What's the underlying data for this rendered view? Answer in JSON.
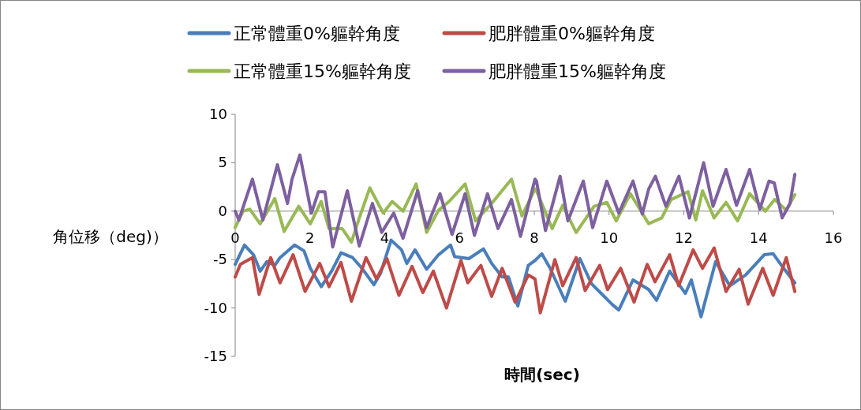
{
  "chart_data": {
    "type": "line",
    "xlabel": "時間(sec)",
    "ylabel": "角位移（deg)）",
    "xlim": [
      0,
      16
    ],
    "xticks": [
      0,
      2,
      4,
      6,
      8,
      10,
      12,
      14,
      16
    ],
    "ylim": [
      -15,
      10
    ],
    "yticks": [
      -15,
      -10,
      -5,
      0,
      5,
      10
    ],
    "grid": false,
    "legend": "top",
    "marker": "none",
    "line_style": "solid",
    "series": [
      {
        "name": "正常體重0%軀幹角度",
        "color": "#4a7ebb",
        "x": [
          0,
          0.25,
          0.49,
          0.67,
          0.85,
          1.06,
          1.2,
          1.59,
          1.84,
          2.01,
          2.3,
          2.58,
          2.83,
          3.14,
          3.39,
          3.71,
          3.89,
          4.17,
          4.45,
          4.59,
          4.81,
          5.12,
          5.44,
          5.76,
          5.87,
          6.25,
          6.64,
          6.86,
          7.14,
          7.31,
          7.56,
          7.84,
          8.02,
          8.2,
          8.41,
          8.83,
          9.22,
          9.53,
          10.1,
          10.26,
          10.64,
          11.06,
          11.27,
          11.62,
          12.04,
          12.2,
          12.46,
          12.85,
          13.23,
          13.65,
          14.15,
          14.39,
          14.67,
          14.97
        ],
        "values": [
          -5.5,
          -3.5,
          -4.5,
          -6.2,
          -5.2,
          -5.6,
          -4.8,
          -3.5,
          -4.1,
          -5.9,
          -7.8,
          -6.2,
          -4.3,
          -4.8,
          -5.9,
          -7.6,
          -6.4,
          -3,
          -4,
          -5.4,
          -4,
          -6,
          -4.5,
          -3.5,
          -4.7,
          -4.9,
          -3.9,
          -5.4,
          -6.8,
          -6.8,
          -9.8,
          -5.6,
          -5.1,
          -4.4,
          -5.8,
          -9.3,
          -4.9,
          -7.5,
          -9.7,
          -10.2,
          -7.1,
          -8.1,
          -9.2,
          -6.2,
          -8.5,
          -7.1,
          -10.9,
          -5.2,
          -7.7,
          -6.6,
          -4.5,
          -4.4,
          -5.9,
          -7.4
        ]
      },
      {
        "name": "肥胖體重0%軀幹角度",
        "color": "#be4b48",
        "x": [
          0,
          0.14,
          0.46,
          0.64,
          0.95,
          1.2,
          1.55,
          1.87,
          2.26,
          2.51,
          2.83,
          3.11,
          3.5,
          3.78,
          4.06,
          4.38,
          4.73,
          5.02,
          5.3,
          5.65,
          6.04,
          6.22,
          6.57,
          6.86,
          7.14,
          7.49,
          7.84,
          8.02,
          8.16,
          8.55,
          8.76,
          9.12,
          9.36,
          9.75,
          9.96,
          10.31,
          10.67,
          11.02,
          11.23,
          11.62,
          11.86,
          12.25,
          12.5,
          12.81,
          13.13,
          13.48,
          13.72,
          14.11,
          14.39,
          14.74,
          14.97
        ],
        "values": [
          -6.8,
          -5.5,
          -4.8,
          -8.6,
          -4.8,
          -7.4,
          -4.5,
          -8.3,
          -5.4,
          -7.8,
          -5.3,
          -9.3,
          -4.8,
          -7,
          -4.9,
          -8.7,
          -5.7,
          -8.4,
          -6.2,
          -10,
          -5.1,
          -7.4,
          -5.6,
          -8.8,
          -5.9,
          -9.4,
          -6.6,
          -7,
          -10.5,
          -5,
          -7.7,
          -4.8,
          -8.2,
          -5.6,
          -8.1,
          -5.9,
          -9.4,
          -5.5,
          -7.3,
          -4.5,
          -7.7,
          -4,
          -5.9,
          -3.8,
          -8.3,
          -6,
          -9.6,
          -5.9,
          -8.7,
          -4.8,
          -8.3
        ]
      },
      {
        "name": "正常體重15%軀幹角度",
        "color": "#98b954",
        "x": [
          0,
          0.21,
          0.39,
          0.67,
          1.06,
          1.31,
          1.7,
          2.01,
          2.3,
          2.51,
          2.86,
          3.11,
          3.32,
          3.6,
          3.96,
          4.2,
          4.49,
          4.84,
          5.12,
          5.44,
          5.72,
          6.15,
          6.43,
          6.86,
          7.39,
          7.67,
          8.02,
          8.06,
          8.48,
          8.76,
          9.12,
          9.6,
          9.94,
          10.19,
          10.57,
          11.06,
          11.41,
          11.66,
          12.11,
          12.32,
          12.5,
          12.81,
          13.13,
          13.44,
          13.76,
          14.18,
          14.43,
          14.74,
          14.97
        ],
        "values": [
          -1.7,
          0,
          0.2,
          -1.3,
          1.3,
          -2.1,
          0.5,
          -1.3,
          1,
          -1.8,
          -1.8,
          -3.2,
          -0.7,
          2.4,
          -0.2,
          1,
          0,
          2.8,
          -2.2,
          0.1,
          1,
          2.8,
          -1,
          0.8,
          3.3,
          -0.5,
          2.3,
          2.1,
          -1.8,
          0.6,
          -2.2,
          0.5,
          0.9,
          -1,
          1.8,
          -1.3,
          -0.7,
          1.2,
          2,
          -0.9,
          2.1,
          -0.7,
          0.9,
          -1,
          1.8,
          0,
          1.2,
          0.1,
          1.7
        ]
      },
      {
        "name": "肥胖體重15%軀幹角度",
        "color": "#7d60a0",
        "x": [
          0,
          0.1,
          0.46,
          0.74,
          1.13,
          1.4,
          1.52,
          1.73,
          2.04,
          2.23,
          2.4,
          2.61,
          3,
          3.32,
          3.67,
          3.92,
          4.24,
          4.49,
          4.88,
          5.12,
          5.48,
          5.8,
          6.15,
          6.4,
          6.75,
          7.03,
          7.39,
          7.63,
          8.02,
          8.06,
          8.3,
          8.69,
          8.9,
          9.31,
          9.56,
          9.94,
          10.26,
          10.64,
          10.89,
          11.06,
          11.24,
          11.52,
          11.87,
          12.15,
          12.53,
          12.78,
          13.13,
          13.41,
          13.76,
          14.03,
          14.28,
          14.42,
          14.63,
          14.84,
          14.97
        ],
        "values": [
          0,
          -0.9,
          3.3,
          -0.9,
          4.8,
          0.8,
          3.3,
          5.8,
          -0.2,
          2,
          2,
          -3.7,
          2.1,
          -3.6,
          0.8,
          -2.2,
          -0.2,
          -2.8,
          2.1,
          -1.7,
          1.8,
          -2.4,
          1.8,
          -2.5,
          1.8,
          -1.8,
          1.2,
          -2.6,
          3.3,
          3.1,
          -2,
          3.6,
          -1,
          3.1,
          -1.7,
          3.1,
          -0.2,
          3.1,
          -0.3,
          2.3,
          3.6,
          0.5,
          3.6,
          -0.7,
          5,
          0.5,
          4.3,
          0.6,
          4.3,
          0.2,
          3.1,
          2.9,
          -0.7,
          0.8,
          3.8
        ]
      }
    ]
  }
}
